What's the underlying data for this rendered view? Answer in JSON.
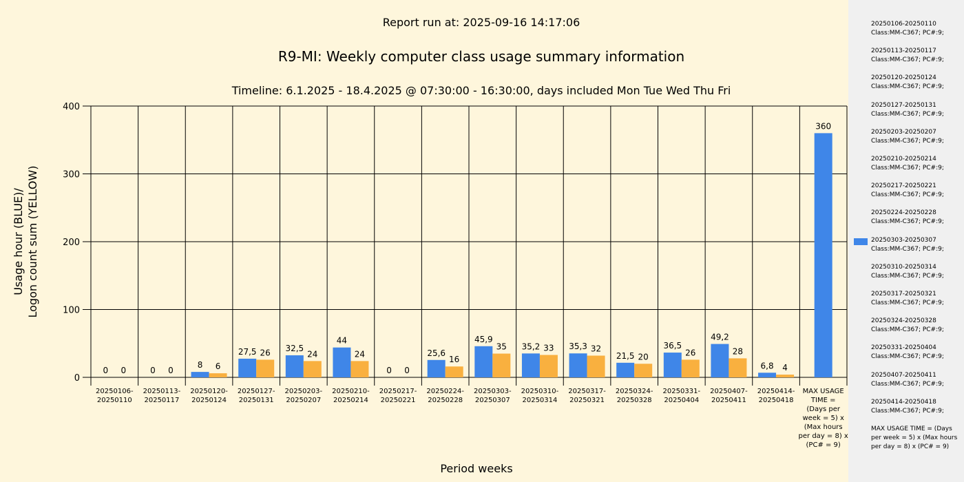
{
  "header": {
    "report_run": "Report run at: 2025-09-16 14:17:06",
    "title": "R9-MI: Weekly computer class usage summary information",
    "timeline": "Timeline:  6.1.2025  - 18.4.2025  @  07:30:00 -  16:30:00, days included Mon Tue Wed Thu Fri"
  },
  "colors": {
    "usage": "#3f86e8",
    "logon": "#f9b03f",
    "background": "#fef6dc",
    "sidebar": "#f0f0f0"
  },
  "chart_data": {
    "type": "bar",
    "xlabel": "Period weeks",
    "ylabel_lines": [
      "Usage hour (BLUE)/",
      "Logon count sum (YELLOW)"
    ],
    "ylim": [
      0,
      400
    ],
    "yticks": [
      "0",
      "100",
      "200",
      "300",
      "400"
    ],
    "grid": true,
    "categories": [
      [
        "20250106-",
        "20250110"
      ],
      [
        "20250113-",
        "20250117"
      ],
      [
        "20250120-",
        "20250124"
      ],
      [
        "20250127-",
        "20250131"
      ],
      [
        "20250203-",
        "20250207"
      ],
      [
        "20250210-",
        "20250214"
      ],
      [
        "20250217-",
        "20250221"
      ],
      [
        "20250224-",
        "20250228"
      ],
      [
        "20250303-",
        "20250307"
      ],
      [
        "20250310-",
        "20250314"
      ],
      [
        "20250317-",
        "20250321"
      ],
      [
        "20250324-",
        "20250328"
      ],
      [
        "20250331-",
        "20250404"
      ],
      [
        "20250407-",
        "20250411"
      ],
      [
        "20250414-",
        "20250418"
      ],
      [
        "MAX USAGE",
        "TIME =",
        "(Days per",
        "week = 5) x",
        "(Max hours",
        "per day = 8) x",
        "(PC# = 9)"
      ]
    ],
    "series": [
      {
        "color": "#3f86e8",
        "values": [
          0,
          0,
          8,
          27.5,
          32.5,
          44,
          0,
          25.6,
          45.9,
          35.2,
          35.3,
          21.5,
          36.5,
          49.2,
          6.8,
          360
        ],
        "labels": [
          "0",
          "0",
          "8",
          "27,5",
          "32,5",
          "44",
          "0",
          "25,6",
          "45,9",
          "35,2",
          "35,3",
          "21,5",
          "36,5",
          "49,2",
          "6,8",
          "360"
        ]
      },
      {
        "color": "#f9b03f",
        "values": [
          0,
          0,
          6,
          26,
          24,
          24,
          0,
          16,
          35,
          33,
          32,
          20,
          26,
          28,
          4,
          null
        ],
        "labels": [
          "0",
          "0",
          "6",
          "26",
          "24",
          "24",
          "0",
          "16",
          "35",
          "33",
          "32",
          "20",
          "26",
          "28",
          "4",
          ""
        ]
      }
    ]
  },
  "legend": {
    "items": [
      [
        "20250106-20250110",
        "Class:MM-C367; PC#:9;"
      ],
      [
        "20250113-20250117",
        "Class:MM-C367; PC#:9;"
      ],
      [
        "20250120-20250124",
        "Class:MM-C367; PC#:9;"
      ],
      [
        "20250127-20250131",
        "Class:MM-C367; PC#:9;"
      ],
      [
        "20250203-20250207",
        "Class:MM-C367; PC#:9;"
      ],
      [
        "20250210-20250214",
        "Class:MM-C367; PC#:9;"
      ],
      [
        "20250217-20250221",
        "Class:MM-C367; PC#:9;"
      ],
      [
        "20250224-20250228",
        "Class:MM-C367; PC#:9;"
      ],
      [
        "20250303-20250307",
        "Class:MM-C367; PC#:9;"
      ],
      [
        "20250310-20250314",
        "Class:MM-C367; PC#:9;"
      ],
      [
        "20250317-20250321",
        "Class:MM-C367; PC#:9;"
      ],
      [
        "20250324-20250328",
        "Class:MM-C367; PC#:9;"
      ],
      [
        "20250331-20250404",
        "Class:MM-C367; PC#:9;"
      ],
      [
        "20250407-20250411",
        "Class:MM-C367; PC#:9;"
      ],
      [
        "20250414-20250418",
        "Class:MM-C367; PC#:9;"
      ],
      [
        "MAX USAGE TIME =  (Days per week = 5) x (Max hours per day = 8) x (PC# = 9)"
      ]
    ],
    "highlighted_index": 8
  }
}
